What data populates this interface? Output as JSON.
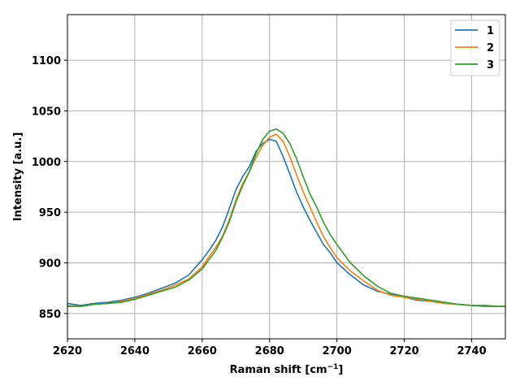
{
  "chart_data": {
    "type": "line",
    "xlabel": "Raman shift [cm",
    "xlabel_sup": "−1",
    "xlabel_suffix": "]",
    "ylabel": "Intensity [a.u.]",
    "xlim": [
      2620,
      2750
    ],
    "ylim": [
      825,
      1145
    ],
    "xticks": [
      2620,
      2640,
      2660,
      2680,
      2700,
      2720,
      2740
    ],
    "yticks": [
      850,
      900,
      950,
      1000,
      1050,
      1100
    ],
    "grid": true,
    "legend_position": "top-right",
    "series": [
      {
        "name": "1",
        "color": "#1f77b4",
        "x": [
          2620,
          2624,
          2628,
          2632,
          2636,
          2640,
          2644,
          2648,
          2652,
          2656,
          2660,
          2662,
          2664,
          2666,
          2668,
          2670,
          2672,
          2674,
          2676,
          2678,
          2680,
          2682,
          2684,
          2686,
          2688,
          2690,
          2692,
          2694,
          2696,
          2698,
          2700,
          2704,
          2708,
          2712,
          2716,
          2720,
          2724,
          2728,
          2732,
          2736,
          2740,
          2744,
          2748,
          2750
        ],
        "y": [
          860,
          858,
          860,
          861,
          863,
          866,
          870,
          875,
          880,
          888,
          903,
          912,
          922,
          935,
          953,
          972,
          985,
          995,
          1010,
          1018,
          1022,
          1020,
          1005,
          988,
          970,
          955,
          942,
          930,
          918,
          910,
          900,
          888,
          878,
          872,
          869,
          866,
          863,
          862,
          860,
          859,
          858,
          858,
          857,
          857
        ]
      },
      {
        "name": "2",
        "color": "#ff7f0e",
        "x": [
          2620,
          2624,
          2628,
          2632,
          2636,
          2640,
          2644,
          2648,
          2652,
          2656,
          2660,
          2662,
          2664,
          2666,
          2668,
          2670,
          2672,
          2674,
          2676,
          2678,
          2680,
          2682,
          2684,
          2686,
          2688,
          2690,
          2692,
          2694,
          2696,
          2698,
          2700,
          2704,
          2708,
          2712,
          2716,
          2720,
          2724,
          2728,
          2732,
          2736,
          2740,
          2744,
          2748,
          2750
        ],
        "y": [
          858,
          857,
          859,
          860,
          862,
          865,
          869,
          873,
          878,
          884,
          896,
          906,
          915,
          926,
          942,
          962,
          978,
          990,
          1004,
          1016,
          1024,
          1027,
          1020,
          1005,
          987,
          970,
          955,
          940,
          926,
          915,
          905,
          892,
          882,
          873,
          868,
          866,
          864,
          862,
          860,
          859,
          858,
          857,
          857,
          857
        ]
      },
      {
        "name": "3",
        "color": "#2ca02c",
        "x": [
          2620,
          2624,
          2628,
          2632,
          2636,
          2640,
          2644,
          2648,
          2652,
          2656,
          2660,
          2662,
          2664,
          2666,
          2668,
          2670,
          2672,
          2674,
          2676,
          2678,
          2680,
          2682,
          2684,
          2686,
          2688,
          2690,
          2692,
          2694,
          2696,
          2698,
          2700,
          2704,
          2708,
          2712,
          2716,
          2720,
          2724,
          2728,
          2732,
          2736,
          2740,
          2744,
          2748,
          2750
        ],
        "y": [
          857,
          857,
          859,
          860,
          861,
          864,
          868,
          872,
          876,
          883,
          894,
          903,
          912,
          925,
          940,
          960,
          976,
          990,
          1008,
          1022,
          1030,
          1032,
          1028,
          1018,
          1003,
          985,
          968,
          955,
          940,
          928,
          918,
          900,
          887,
          877,
          870,
          867,
          865,
          863,
          861,
          859,
          858,
          857,
          857,
          857
        ]
      }
    ]
  }
}
